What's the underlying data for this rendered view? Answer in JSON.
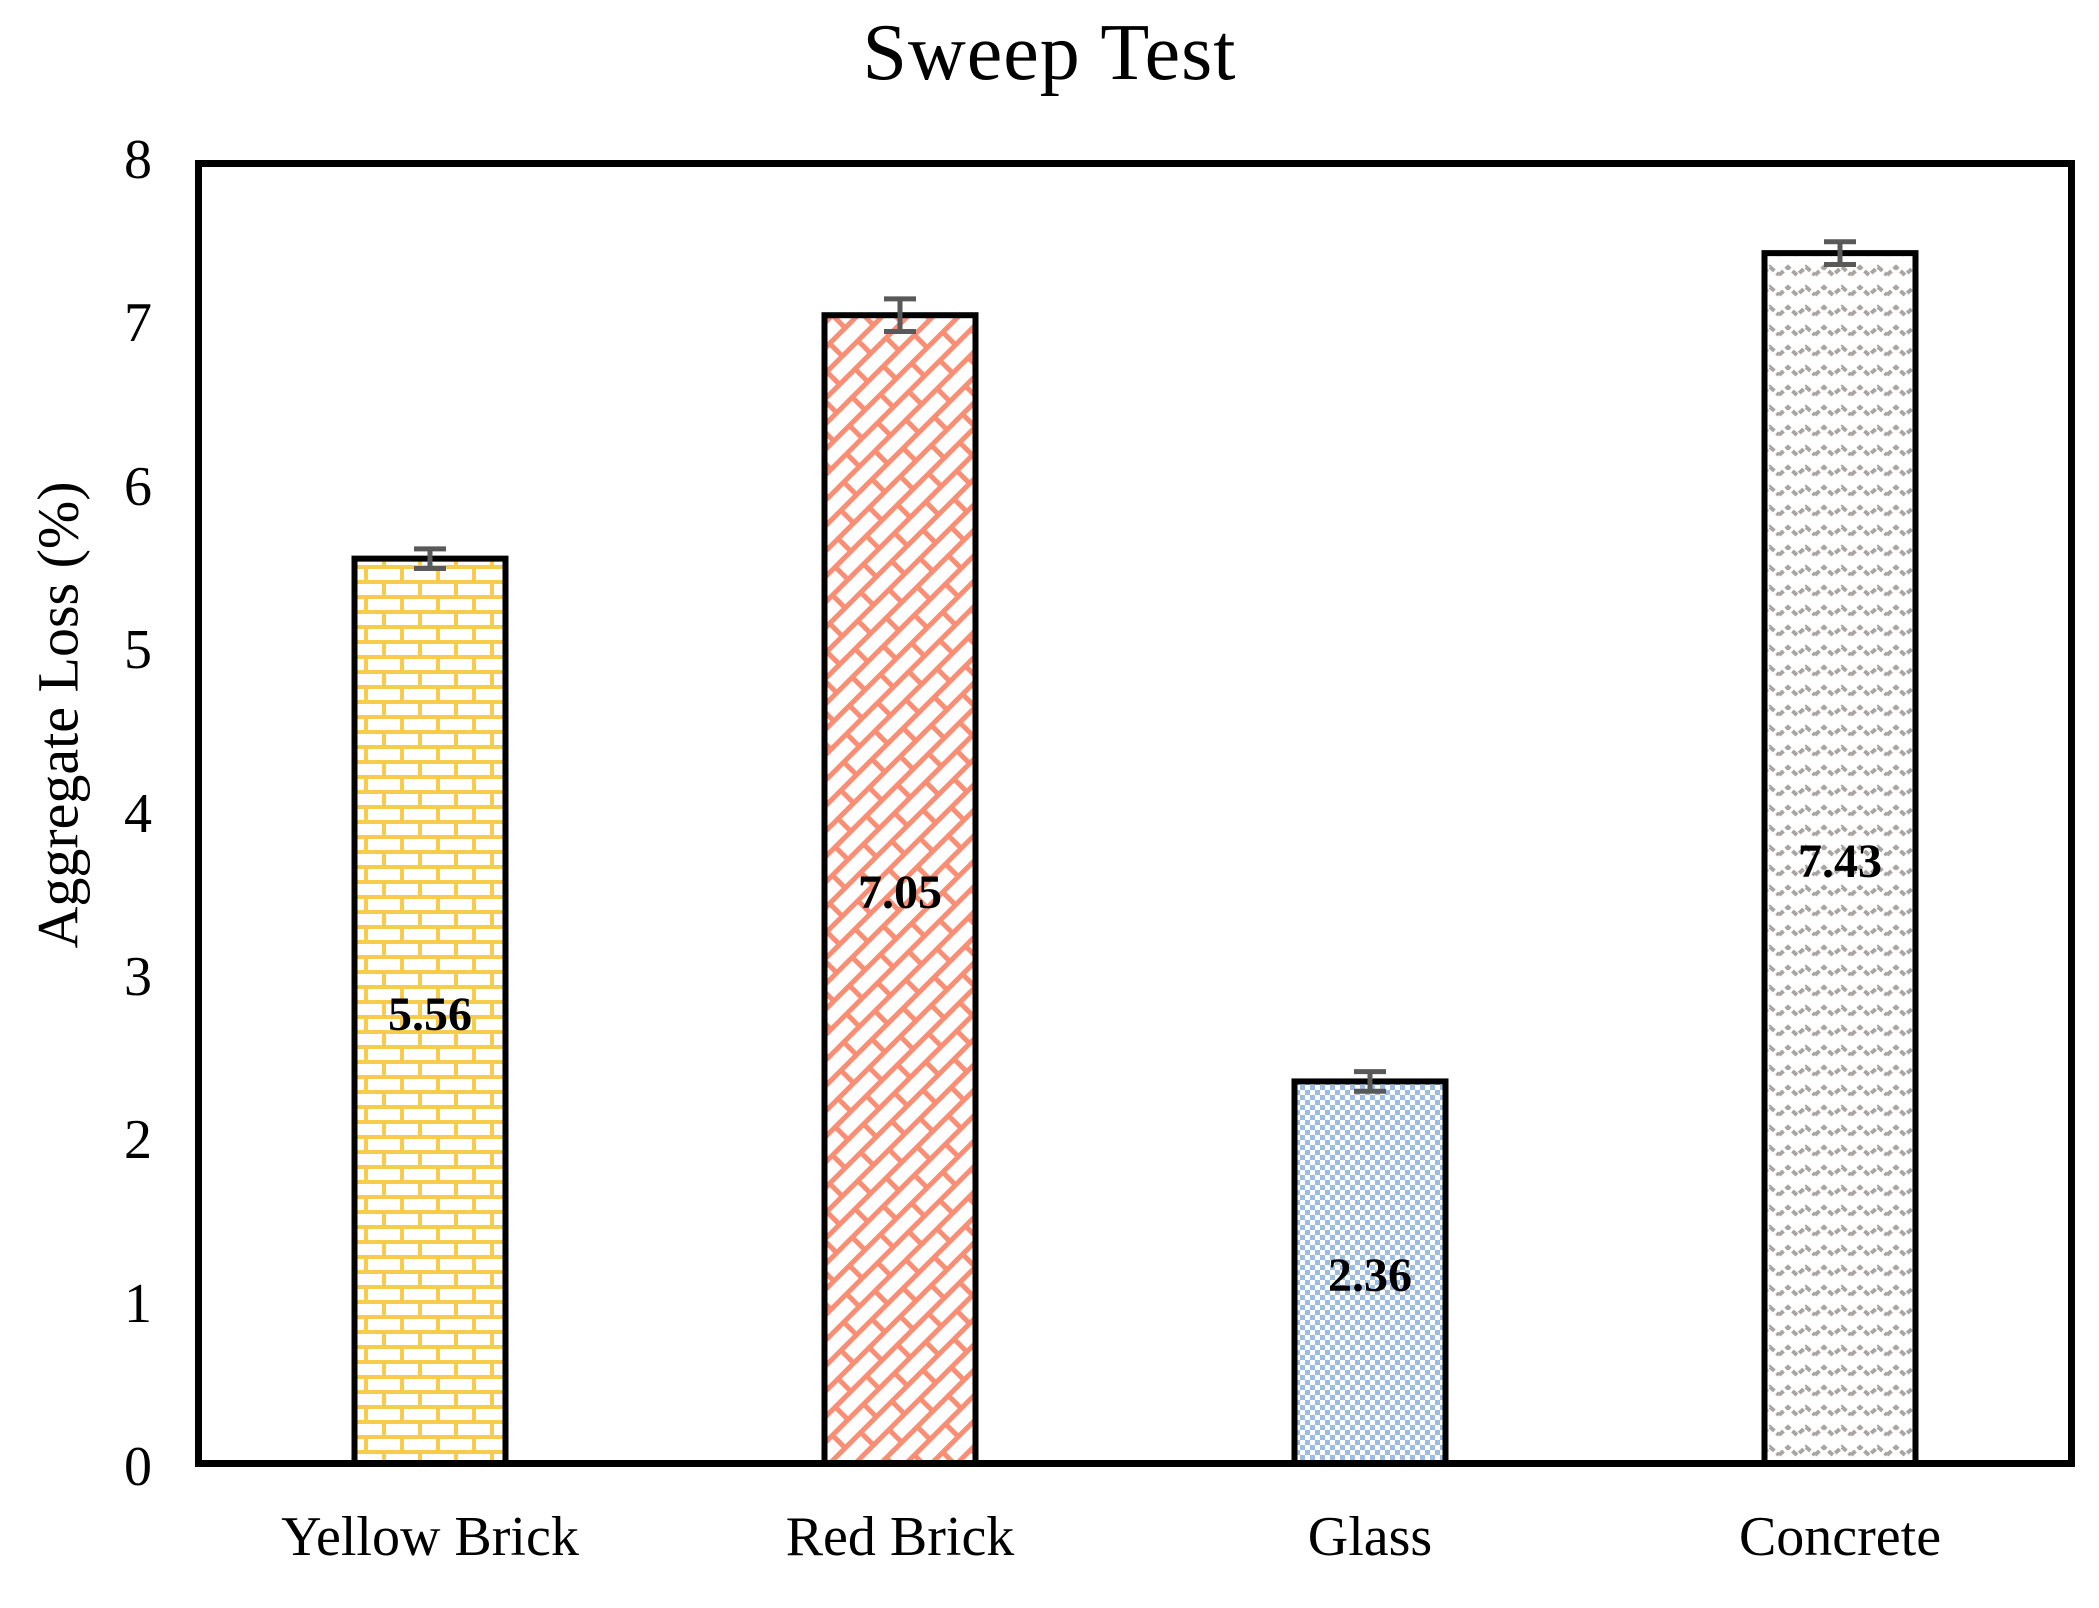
{
  "chart_data": {
    "type": "bar",
    "title": "Sweep Test",
    "ylabel": "Aggregate Loss (%)",
    "xlabel": "",
    "categories": [
      "Yellow Brick",
      "Red Brick",
      "Glass",
      "Concrete"
    ],
    "values": [
      5.56,
      7.05,
      2.36,
      7.43
    ],
    "data_labels": [
      "5.56",
      "7.05",
      "2.36",
      "7.43"
    ],
    "errors": [
      0.06,
      0.1,
      0.06,
      0.07
    ],
    "yticks": [
      0,
      1,
      2,
      3,
      4,
      5,
      6,
      7,
      8
    ],
    "ylim": [
      0,
      8
    ],
    "grid": false,
    "legend": "none",
    "bar_patterns": [
      "yellow-brick",
      "red-diagonal-brick",
      "blue-dot-grid",
      "gray-wave"
    ],
    "pattern_colors": {
      "yellow": "#F7CC4D",
      "red": "#FA8E75",
      "blue": "#9DBCE4",
      "gray": "#A9A5A3"
    },
    "error_bar_color": "#595959",
    "bar_border_color": "#000000",
    "frame_color": "#000000"
  }
}
